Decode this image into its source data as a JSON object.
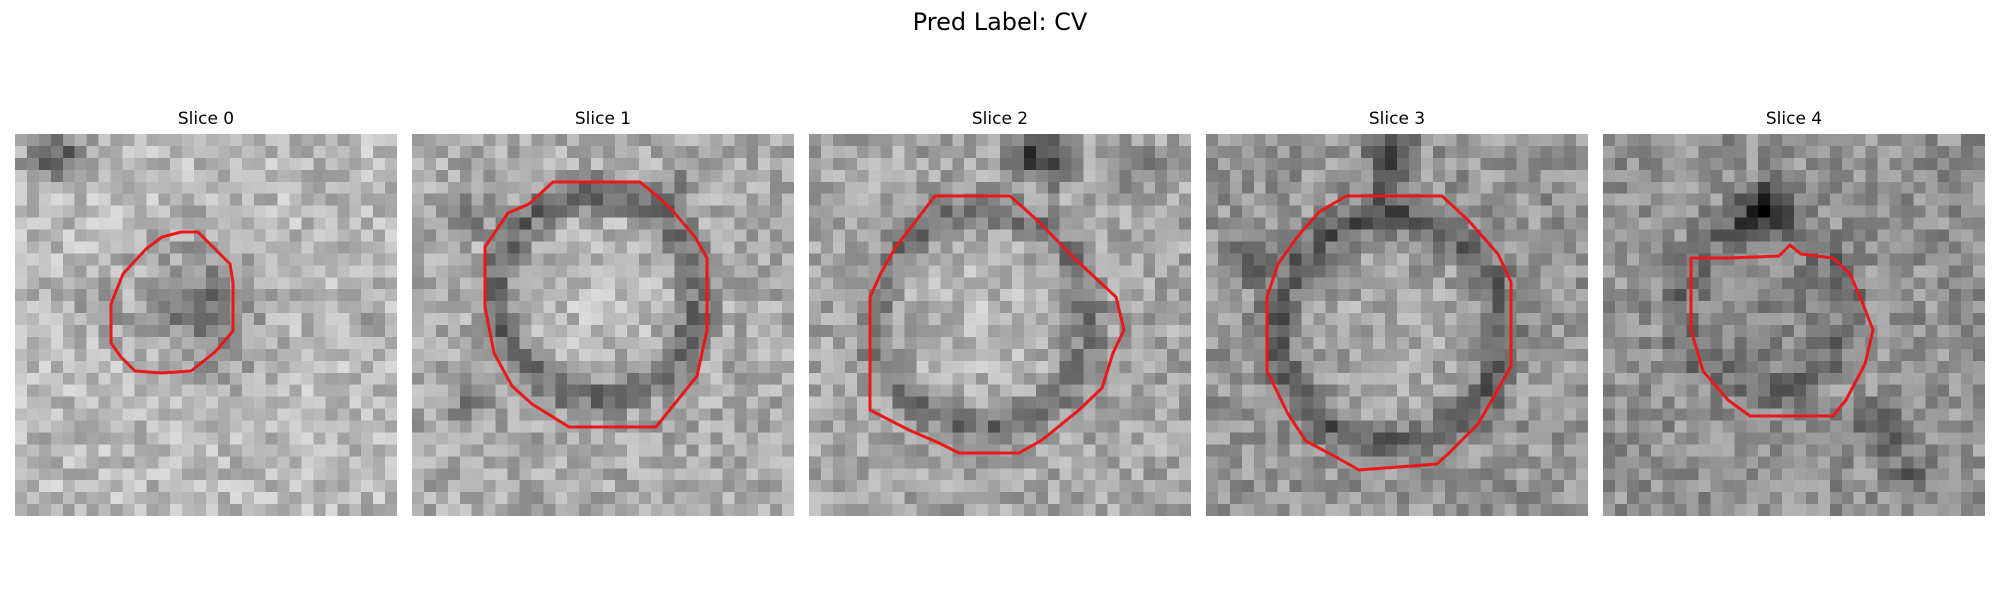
{
  "figure": {
    "title": "Pred Label: CV"
  },
  "contour_color": "#e8191b",
  "panels": [
    {
      "title": "Slice 0"
    },
    {
      "title": "Slice 1"
    },
    {
      "title": "Slice 2"
    },
    {
      "title": "Slice 3"
    },
    {
      "title": "Slice 4"
    }
  ]
}
